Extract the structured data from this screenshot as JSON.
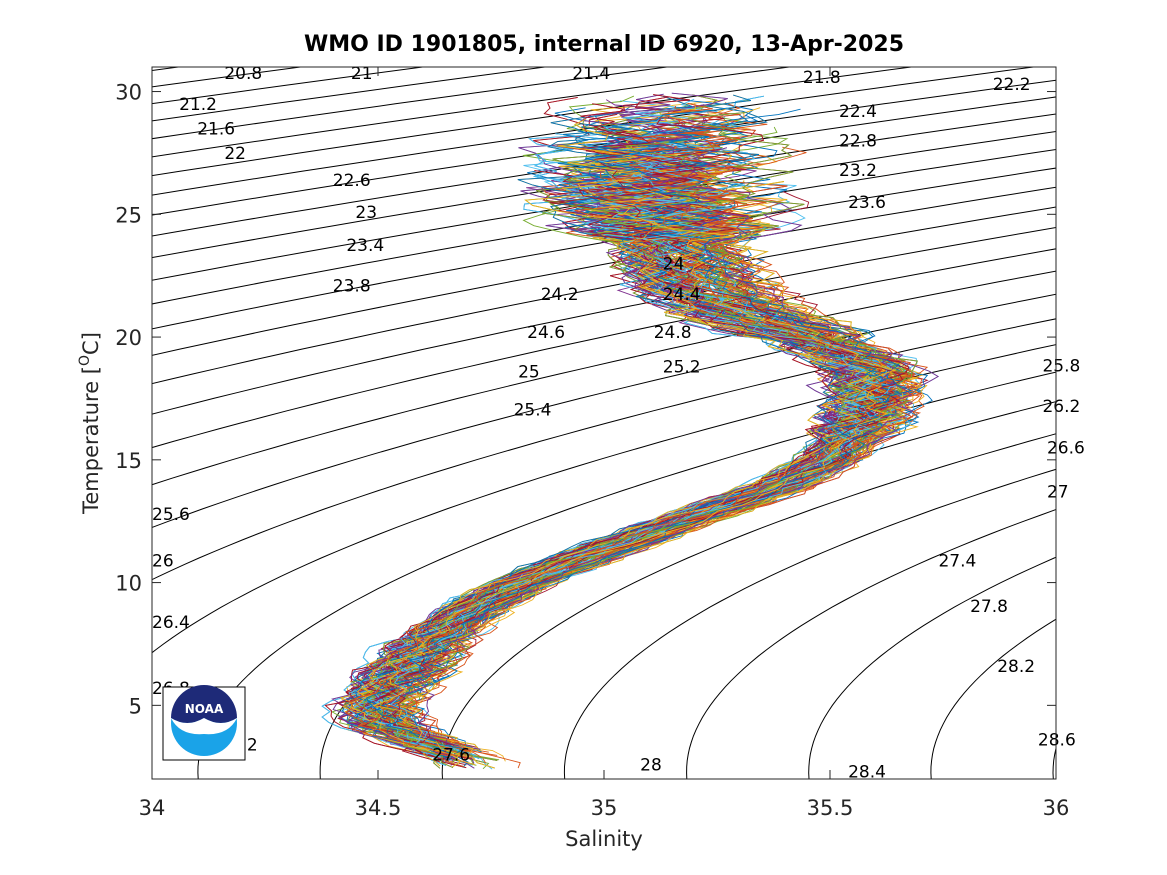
{
  "chart_data": {
    "type": "line",
    "title": "WMO ID 1901805, internal ID 6920, 13-Apr-2025",
    "xlabel": "Salinity",
    "ylabel": "Temperature [°C]",
    "ylabel_prefix": "Temperature [",
    "ylabel_sup": "O",
    "ylabel_suffix": "C]",
    "xlim": [
      34,
      36
    ],
    "ylim": [
      2,
      31
    ],
    "x_ticks": [
      34,
      34.5,
      35,
      35.5,
      36
    ],
    "x_tick_labels": [
      "34",
      "34.5",
      "35",
      "35.5",
      "36"
    ],
    "y_ticks": [
      5,
      10,
      15,
      20,
      25,
      30
    ],
    "y_tick_labels": [
      "5",
      "10",
      "15",
      "20",
      "25",
      "30"
    ],
    "grid": false,
    "logo_text": "NOAA",
    "isopycnal_labels": [
      {
        "text": "20.8",
        "s": 34.16,
        "t": 30.75
      },
      {
        "text": "21",
        "s": 34.44,
        "t": 30.75
      },
      {
        "text": "21.4",
        "s": 34.93,
        "t": 30.75
      },
      {
        "text": "21.8",
        "s": 35.44,
        "t": 30.6
      },
      {
        "text": "22.2",
        "s": 35.86,
        "t": 30.3
      },
      {
        "text": "21.2",
        "s": 34.06,
        "t": 29.5
      },
      {
        "text": "21.6",
        "s": 34.1,
        "t": 28.5
      },
      {
        "text": "22",
        "s": 34.16,
        "t": 27.5
      },
      {
        "text": "22.4",
        "s": 35.52,
        "t": 29.2
      },
      {
        "text": "22.8",
        "s": 35.52,
        "t": 28.0
      },
      {
        "text": "23.2",
        "s": 35.52,
        "t": 26.8
      },
      {
        "text": "23.6",
        "s": 35.54,
        "t": 25.5
      },
      {
        "text": "22.6",
        "s": 34.4,
        "t": 26.4
      },
      {
        "text": "23",
        "s": 34.45,
        "t": 25.1
      },
      {
        "text": "23.4",
        "s": 34.43,
        "t": 23.75
      },
      {
        "text": "23.8",
        "s": 34.4,
        "t": 22.1
      },
      {
        "text": "24",
        "s": 35.13,
        "t": 23.0
      },
      {
        "text": "24.2",
        "s": 34.86,
        "t": 21.75
      },
      {
        "text": "24.4",
        "s": 35.13,
        "t": 21.75
      },
      {
        "text": "24.6",
        "s": 34.83,
        "t": 20.2
      },
      {
        "text": "24.8",
        "s": 35.11,
        "t": 20.2
      },
      {
        "text": "25",
        "s": 34.81,
        "t": 18.6
      },
      {
        "text": "25.2",
        "s": 35.13,
        "t": 18.8
      },
      {
        "text": "25.4",
        "s": 34.8,
        "t": 17.05
      },
      {
        "text": "25.6",
        "s": 34.0,
        "t": 12.8
      },
      {
        "text": "26",
        "s": 34.0,
        "t": 10.9
      },
      {
        "text": "26.4",
        "s": 34.0,
        "t": 8.4
      },
      {
        "text": "26.8",
        "s": 34.0,
        "t": 5.7
      },
      {
        "text": "2",
        "s": 34.21,
        "t": 3.4
      },
      {
        "text": "25.8",
        "s": 35.97,
        "t": 18.85
      },
      {
        "text": "26.2",
        "s": 35.97,
        "t": 17.2
      },
      {
        "text": "26.6",
        "s": 35.98,
        "t": 15.5
      },
      {
        "text": "27",
        "s": 35.98,
        "t": 13.7
      },
      {
        "text": "27.4",
        "s": 35.74,
        "t": 10.9
      },
      {
        "text": "27.8",
        "s": 35.81,
        "t": 9.05
      },
      {
        "text": "28.2",
        "s": 35.87,
        "t": 6.6
      },
      {
        "text": "28.6",
        "s": 35.96,
        "t": 3.6
      },
      {
        "text": "27.6",
        "s": 34.62,
        "t": 3.0
      },
      {
        "text": "28",
        "s": 35.08,
        "t": 2.6
      },
      {
        "text": "28.4",
        "s": 35.54,
        "t": 2.3
      }
    ],
    "profiles_count": 220,
    "series_colors": [
      "#0072BD",
      "#D95319",
      "#EDB120",
      "#7E2F8E",
      "#77AC30",
      "#4DBEEE",
      "#A2142F"
    ],
    "mean_profile": {
      "t": [
        2.6,
        3.4,
        4.2,
        5.0,
        5.8,
        6.6,
        7.4,
        8.2,
        9.0,
        10.0,
        11.0,
        12.0,
        13.0,
        14.0,
        15.0,
        16.0,
        16.8,
        17.6,
        18.4,
        19.2,
        20.0,
        21.0,
        22.0,
        23.0,
        24.0,
        25.0,
        26.0,
        27.0,
        28.0,
        29.0,
        29.8
      ],
      "s": [
        34.72,
        34.62,
        34.52,
        34.5,
        34.53,
        34.57,
        34.61,
        34.66,
        34.72,
        34.82,
        34.95,
        35.1,
        35.25,
        35.4,
        35.5,
        35.55,
        35.58,
        35.6,
        35.6,
        35.55,
        35.45,
        35.3,
        35.22,
        35.18,
        35.16,
        35.14,
        35.12,
        35.12,
        35.13,
        35.15,
        35.18
      ]
    }
  }
}
